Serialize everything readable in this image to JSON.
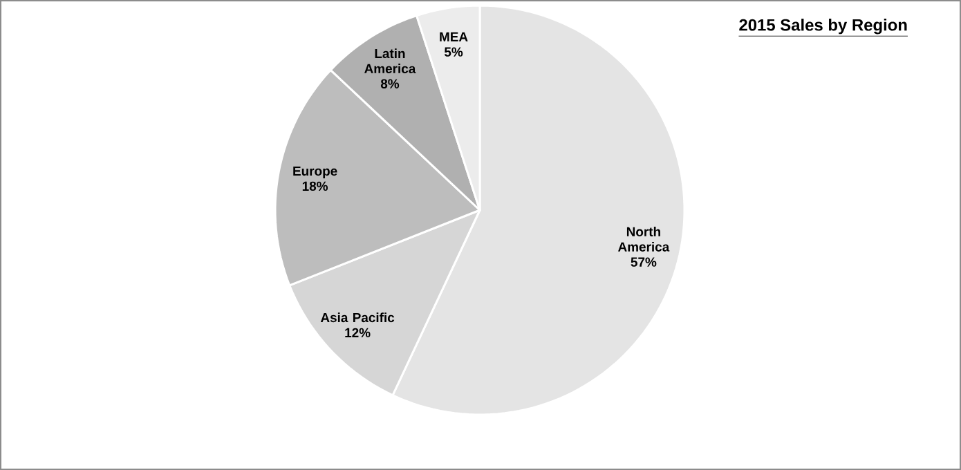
{
  "chart_data": {
    "type": "pie",
    "title": "2015 Sales by Region",
    "categories": [
      "North America",
      "Asia Pacific",
      "Europe",
      "Latin America",
      "MEA"
    ],
    "values": [
      57,
      12,
      18,
      8,
      5
    ],
    "value_labels": [
      "57%",
      "12%",
      "18%",
      "8%",
      "5%"
    ],
    "colors": [
      "#e4e4e4",
      "#d6d6d6",
      "#bdbdbd",
      "#b0b0b0",
      "#ececec"
    ]
  }
}
